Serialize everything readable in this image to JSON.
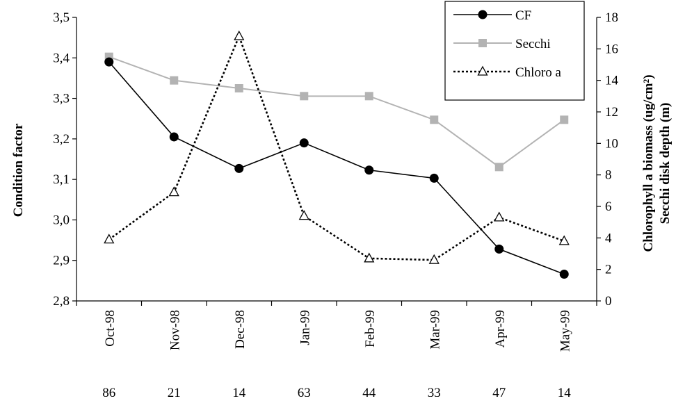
{
  "chart_data": {
    "type": "line",
    "categories": [
      "Oct-98",
      "Nov-98",
      "Dec-98",
      "Jan-99",
      "Feb-99",
      "Mar-99",
      "Apr-99",
      "May-99"
    ],
    "sample_counts": [
      "86",
      "21",
      "14",
      "63",
      "44",
      "33",
      "47",
      "14"
    ],
    "left_axis": {
      "label": "Condition factor",
      "ylim": [
        2.8,
        3.5
      ],
      "ticks": [
        "2,8",
        "2,9",
        "3,0",
        "3,1",
        "3,2",
        "3,3",
        "3,4",
        "3,5"
      ]
    },
    "right_axis": {
      "label_line1": "Chlorophyll a biomass (ug/cm²)",
      "label_line2": "Secchi disk depth (m)",
      "ylim": [
        0,
        18
      ],
      "ticks": [
        "0",
        "2",
        "4",
        "6",
        "8",
        "10",
        "12",
        "14",
        "16",
        "18"
      ]
    },
    "series": [
      {
        "name": "CF",
        "axis": "left",
        "color": "#000000",
        "style": "solid",
        "marker": "circle",
        "values": [
          3.39,
          3.205,
          3.127,
          3.19,
          3.123,
          3.103,
          2.928,
          2.866
        ]
      },
      {
        "name": "Secchi",
        "axis": "right",
        "color": "#b3b3b3",
        "style": "solid",
        "marker": "square",
        "values": [
          15.5,
          14.0,
          13.5,
          13.0,
          13.0,
          11.5,
          8.5,
          11.5
        ]
      },
      {
        "name": "Chloro a",
        "axis": "right",
        "color": "#000000",
        "style": "dotted",
        "marker": "triangle",
        "values": [
          3.9,
          6.9,
          16.8,
          5.4,
          2.7,
          2.6,
          5.3,
          3.8
        ]
      }
    ],
    "legend": {
      "placement": "top-right",
      "entries": [
        "CF",
        "Secchi",
        "Chloro a"
      ]
    },
    "grid": false
  }
}
